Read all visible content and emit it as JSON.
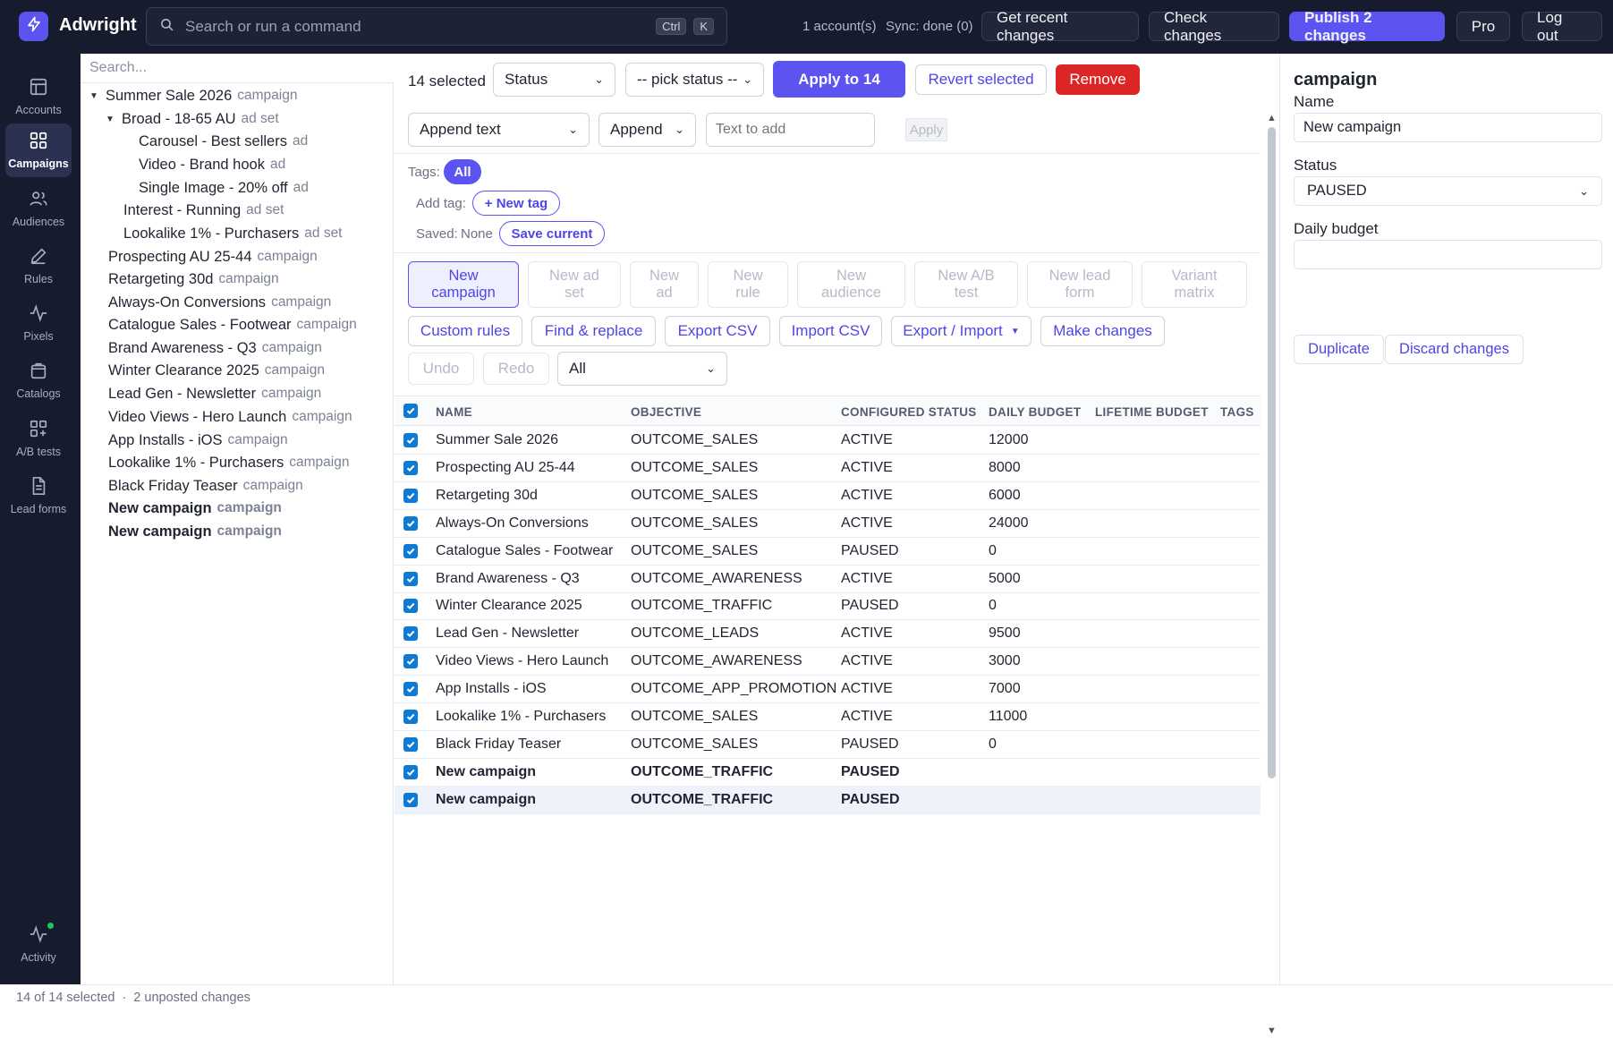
{
  "app": {
    "name": "Adwright"
  },
  "command": {
    "placeholder": "Search or run a command",
    "key1": "Ctrl",
    "key2": "K"
  },
  "top": {
    "accounts": "1 account(s)",
    "sync": "Sync: done (0)",
    "recent": "Get recent changes",
    "check": "Check changes",
    "publish": "Publish 2 changes",
    "pro": "Pro",
    "logout": "Log out"
  },
  "rail": {
    "accounts": "Accounts",
    "campaigns": "Campaigns",
    "audiences": "Audiences",
    "rules": "Rules",
    "pixels": "Pixels",
    "catalogs": "Catalogs",
    "abtests": "A/B tests",
    "leadforms": "Lead forms",
    "activity": "Activity"
  },
  "tree": {
    "search_placeholder": "Search...",
    "items": [
      {
        "name": "Summer Sale 2026",
        "kind": "campaign"
      },
      {
        "name": "Broad - 18-65 AU",
        "kind": "ad set"
      },
      {
        "name": "Carousel - Best sellers",
        "kind": "ad"
      },
      {
        "name": "Video - Brand hook",
        "kind": "ad"
      },
      {
        "name": "Single Image - 20% off",
        "kind": "ad"
      },
      {
        "name": "Interest - Running",
        "kind": "ad set"
      },
      {
        "name": "Lookalike 1% - Purchasers",
        "kind": "ad set"
      },
      {
        "name": "Prospecting AU 25-44",
        "kind": "campaign"
      },
      {
        "name": "Retargeting 30d",
        "kind": "campaign"
      },
      {
        "name": "Always-On Conversions",
        "kind": "campaign"
      },
      {
        "name": "Catalogue Sales - Footwear",
        "kind": "campaign"
      },
      {
        "name": "Brand Awareness - Q3",
        "kind": "campaign"
      },
      {
        "name": "Winter Clearance 2025",
        "kind": "campaign"
      },
      {
        "name": "Lead Gen - Newsletter",
        "kind": "campaign"
      },
      {
        "name": "Video Views - Hero Launch",
        "kind": "campaign"
      },
      {
        "name": "App Installs - iOS",
        "kind": "campaign"
      },
      {
        "name": "Lookalike 1% - Purchasers",
        "kind": "campaign"
      },
      {
        "name": "Black Friday Teaser",
        "kind": "campaign"
      },
      {
        "name": "New campaign",
        "kind": "campaign"
      },
      {
        "name": "New campaign",
        "kind": "campaign"
      }
    ]
  },
  "bulk": {
    "selected": "14 selected",
    "field": "Status",
    "pick": "-- pick status --",
    "apply": "Apply to 14",
    "revert": "Revert selected",
    "remove": "Remove",
    "text_mode": "Append text",
    "text_op": "Append",
    "text_placeholder": "Text to add",
    "text_apply": "Apply"
  },
  "tags": {
    "label": "Tags:",
    "all": "All",
    "add_label": "Add tag:",
    "new_tag": "+ New tag",
    "saved_label": "Saved:",
    "saved_value": "None",
    "save_current": "Save current"
  },
  "actions": {
    "new_campaign": [
      "New",
      "campaign"
    ],
    "new_adset": [
      "New ad",
      "set"
    ],
    "new_ad": [
      "New",
      "ad"
    ],
    "new_rule": [
      "New",
      "rule"
    ],
    "new_audience": [
      "New",
      "audience"
    ],
    "new_abtest": [
      "New A/B",
      "test"
    ],
    "new_leadform": [
      "New lead",
      "form"
    ],
    "variant_matrix": [
      "Variant",
      "matrix"
    ],
    "custom_rules": "Custom rules",
    "find_replace": "Find & replace",
    "export_csv": "Export CSV",
    "import_csv": "Import CSV",
    "export_import": "Export / Import",
    "make_changes": "Make changes",
    "undo": "Undo",
    "redo": "Redo",
    "filter": "All"
  },
  "table": {
    "columns": [
      "NAME",
      "OBJECTIVE",
      "CONFIGURED STATUS",
      "DAILY BUDGET",
      "LIFETIME BUDGET",
      "TAGS"
    ],
    "rows": [
      {
        "name": "Summer Sale 2026",
        "objective": "OUTCOME_SALES",
        "status": "ACTIVE",
        "daily": "12000",
        "lifetime": "",
        "tags": ""
      },
      {
        "name": "Prospecting AU 25-44",
        "objective": "OUTCOME_SALES",
        "status": "ACTIVE",
        "daily": "8000",
        "lifetime": "",
        "tags": ""
      },
      {
        "name": "Retargeting 30d",
        "objective": "OUTCOME_SALES",
        "status": "ACTIVE",
        "daily": "6000",
        "lifetime": "",
        "tags": ""
      },
      {
        "name": "Always-On Conversions",
        "objective": "OUTCOME_SALES",
        "status": "ACTIVE",
        "daily": "24000",
        "lifetime": "",
        "tags": ""
      },
      {
        "name": "Catalogue Sales - Footwear",
        "objective": "OUTCOME_SALES",
        "status": "PAUSED",
        "daily": "0",
        "lifetime": "",
        "tags": ""
      },
      {
        "name": "Brand Awareness - Q3",
        "objective": "OUTCOME_AWARENESS",
        "status": "ACTIVE",
        "daily": "5000",
        "lifetime": "",
        "tags": ""
      },
      {
        "name": "Winter Clearance 2025",
        "objective": "OUTCOME_TRAFFIC",
        "status": "PAUSED",
        "daily": "0",
        "lifetime": "",
        "tags": ""
      },
      {
        "name": "Lead Gen - Newsletter",
        "objective": "OUTCOME_LEADS",
        "status": "ACTIVE",
        "daily": "9500",
        "lifetime": "",
        "tags": ""
      },
      {
        "name": "Video Views - Hero Launch",
        "objective": "OUTCOME_AWARENESS",
        "status": "ACTIVE",
        "daily": "3000",
        "lifetime": "",
        "tags": ""
      },
      {
        "name": "App Installs - iOS",
        "objective": "OUTCOME_APP_PROMOTION",
        "status": "ACTIVE",
        "daily": "7000",
        "lifetime": "",
        "tags": ""
      },
      {
        "name": "Lookalike 1% - Purchasers",
        "objective": "OUTCOME_SALES",
        "status": "ACTIVE",
        "daily": "11000",
        "lifetime": "",
        "tags": ""
      },
      {
        "name": "Black Friday Teaser",
        "objective": "OUTCOME_SALES",
        "status": "PAUSED",
        "daily": "0",
        "lifetime": "",
        "tags": ""
      },
      {
        "name": "New campaign",
        "objective": "OUTCOME_TRAFFIC",
        "status": "PAUSED",
        "daily": "",
        "lifetime": "",
        "tags": ""
      },
      {
        "name": "New campaign",
        "objective": "OUTCOME_TRAFFIC",
        "status": "PAUSED",
        "daily": "",
        "lifetime": "",
        "tags": ""
      }
    ]
  },
  "editor": {
    "title": "campaign",
    "name_label": "Name",
    "name_value": "New campaign",
    "status_label": "Status",
    "status_value": "PAUSED",
    "budget_label": "Daily budget",
    "budget_value": "",
    "duplicate": "Duplicate",
    "discard": "Discard changes"
  },
  "status": {
    "selection": "14 of 14 selected",
    "sep": "·",
    "unposted": "2 unposted changes"
  }
}
